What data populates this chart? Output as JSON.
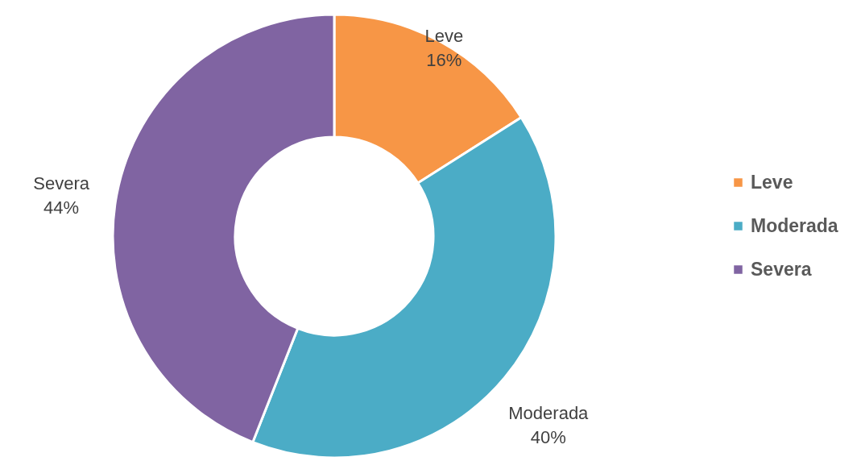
{
  "chart_data": {
    "type": "donut",
    "categories": [
      "Leve",
      "Moderada",
      "Severa"
    ],
    "values": [
      16,
      40,
      44
    ],
    "value_labels": [
      "16%",
      "40%",
      "44%"
    ],
    "colors": [
      "#f79646",
      "#4bacc6",
      "#8064a2"
    ],
    "legend": "right"
  }
}
